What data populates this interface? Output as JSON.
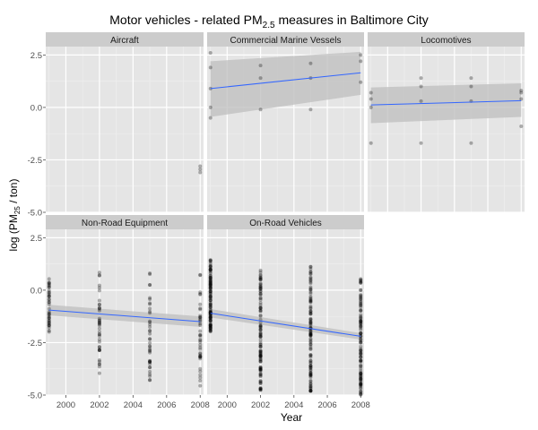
{
  "chart_data": {
    "type": "scatter",
    "title": {
      "prefix": "Motor vehicles - related ",
      "pm": "PM",
      "pm_sub": "2.5",
      "suffix": " measures in Baltimore City"
    },
    "xlabel": "Year",
    "ylabel": {
      "prefix": "log (PM",
      "sub": "25",
      "suffix": " / ton)"
    },
    "x_ticks": [
      2000,
      2002,
      2004,
      2006,
      2008
    ],
    "y_ticks": [
      2.5,
      0.0,
      -2.5,
      -5.0
    ],
    "y_tick_labels": [
      "2.5",
      "0.0",
      "-2.5",
      "-5.0"
    ],
    "xlim": [
      1998.8,
      2008.2
    ],
    "ylim": [
      -5.0,
      2.9
    ],
    "trend_color": "#3366ff",
    "ribbon_color": "#bdbdbd",
    "panel_bg": "#e5e5e5",
    "strip_bg": "#cccccc",
    "panels": [
      {
        "name": "Aircraft",
        "points": [
          [
            2008,
            -2.8
          ],
          [
            2008,
            -2.95
          ],
          [
            2008,
            -3.1
          ]
        ],
        "fit": null
      },
      {
        "name": "Commercial Marine Vessels",
        "points": [
          [
            1999,
            2.6
          ],
          [
            1999,
            1.9
          ],
          [
            1999,
            0.9
          ],
          [
            1999,
            0.0
          ],
          [
            1999,
            -0.5
          ],
          [
            2002,
            2.0
          ],
          [
            2002,
            1.4
          ],
          [
            2002,
            -0.1
          ],
          [
            2005,
            2.1
          ],
          [
            2005,
            1.4
          ],
          [
            2005,
            -0.1
          ],
          [
            2008,
            2.5
          ],
          [
            2008,
            2.2
          ],
          [
            2008,
            1.2
          ]
        ],
        "fit": {
          "y_start": 0.9,
          "y_end": 1.65,
          "lo_start": -0.45,
          "hi_start": 2.2,
          "lo_end": 0.6,
          "hi_end": 2.65
        }
      },
      {
        "name": "Locomotives",
        "points": [
          [
            1999,
            0.7
          ],
          [
            1999,
            0.4
          ],
          [
            1999,
            0.0
          ],
          [
            1999,
            -1.7
          ],
          [
            2002,
            1.4
          ],
          [
            2002,
            1.0
          ],
          [
            2002,
            0.3
          ],
          [
            2002,
            -1.7
          ],
          [
            2005,
            1.4
          ],
          [
            2005,
            1.0
          ],
          [
            2005,
            0.3
          ],
          [
            2005,
            -1.7
          ],
          [
            2008,
            0.8
          ],
          [
            2008,
            0.7
          ],
          [
            2008,
            0.4
          ],
          [
            2008,
            -0.9
          ]
        ],
        "fit": {
          "y_start": 0.12,
          "y_end": 0.32,
          "lo_start": -0.75,
          "hi_start": 0.95,
          "lo_end": -0.45,
          "hi_end": 1.15
        }
      },
      {
        "name": "Non-Road Equipment",
        "points": [],
        "dense": {
          "years": [
            1999,
            2002,
            2005,
            2008
          ],
          "min": [
            -2.0,
            -4.2,
            -4.3,
            -4.7
          ],
          "max": [
            1.0,
            0.9,
            0.9,
            0.8
          ],
          "count": 40
        },
        "fit": {
          "y_start": -0.95,
          "y_end": -1.5,
          "lo_start": -1.2,
          "hi_start": -0.7,
          "lo_end": -1.75,
          "hi_end": -1.25
        }
      },
      {
        "name": "On-Road Vehicles",
        "points": [],
        "dense": {
          "years": [
            1999,
            2002,
            2005,
            2008
          ],
          "min": [
            -2.0,
            -4.8,
            -5.0,
            -5.0
          ],
          "max": [
            1.6,
            1.0,
            1.2,
            0.6
          ],
          "count": 110
        },
        "fit": {
          "y_start": -1.1,
          "y_end": -2.2,
          "lo_start": -1.3,
          "hi_start": -0.9,
          "lo_end": -2.35,
          "hi_end": -2.05
        }
      }
    ]
  }
}
